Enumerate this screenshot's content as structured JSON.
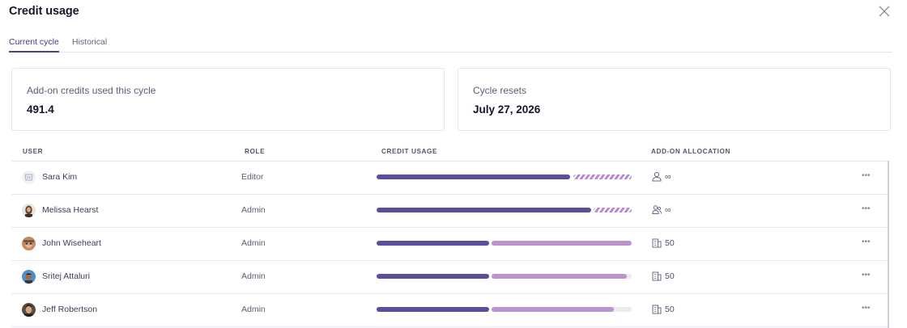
{
  "dialog": {
    "title": "Credit usage",
    "close_icon": "close-icon"
  },
  "tabs": [
    {
      "label": "Current cycle",
      "active": true
    },
    {
      "label": "Historical",
      "active": false
    }
  ],
  "summary": {
    "addon_credits": {
      "label": "Add-on credits used this cycle",
      "value": "491.4"
    },
    "cycle_resets": {
      "label": "Cycle resets",
      "value": "July 27, 2026"
    }
  },
  "table": {
    "columns": [
      "USER",
      "ROLE",
      "CREDIT USAGE",
      "ADD-ON ALLOCATION"
    ],
    "rows": [
      {
        "user": "Sara Kim",
        "role": "Editor",
        "usage": {
          "base": 0.76,
          "addon_from": 0.77,
          "addon_to": 1.0,
          "addon_style": "hatched"
        },
        "alloc_icon": "user-icon",
        "allocation": "∞",
        "menu": "•••"
      },
      {
        "user": "Melissa Hearst",
        "role": "Admin",
        "usage": {
          "base": 0.84,
          "addon_from": 0.85,
          "addon_to": 1.0,
          "addon_style": "hatched"
        },
        "alloc_icon": "users-icon",
        "allocation": "∞",
        "menu": "•••"
      },
      {
        "user": "John Wiseheart",
        "role": "Admin",
        "usage": {
          "base": 0.44,
          "addon_from": 0.45,
          "addon_to": 1.0,
          "addon_style": "solid"
        },
        "alloc_icon": "building-icon",
        "allocation": "50",
        "menu": "•••"
      },
      {
        "user": "Sritej Attaluri",
        "role": "Admin",
        "usage": {
          "base": 0.44,
          "addon_from": 0.45,
          "addon_to": 0.98,
          "addon_style": "solid"
        },
        "alloc_icon": "building-icon",
        "allocation": "50",
        "menu": "•••"
      },
      {
        "user": "Jeff Robertson",
        "role": "Admin",
        "usage": {
          "base": 0.44,
          "addon_from": 0.45,
          "addon_to": 0.93,
          "addon_style": "solid"
        },
        "alloc_icon": "building-icon",
        "allocation": "50",
        "menu": "•••"
      }
    ]
  },
  "colors": {
    "accent": "#4a448f",
    "base_usage": "#5b4e9a",
    "addon_usage": "#bc93cf",
    "track": "#ecebf0"
  }
}
